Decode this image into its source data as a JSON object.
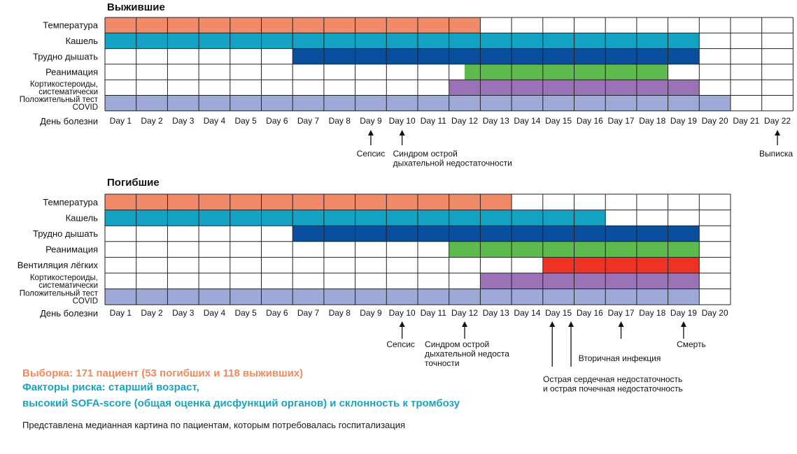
{
  "colors": {
    "fever": "#f08a68",
    "cough": "#13a2c3",
    "dyspnea": "#0a4f9e",
    "icu": "#5dbb4d",
    "ventilation": "#ee3325",
    "steroids": "#9a72b6",
    "covid": "#9da9d6",
    "grid": "#222222"
  },
  "day_axis_label": "День болезни",
  "chart_data": [
    {
      "type": "timeline",
      "title": "Выжившие",
      "xlabel": "День болезни",
      "days": [
        "Day 1",
        "Day 2",
        "Day 3",
        "Day 4",
        "Day 5",
        "Day 6",
        "Day 7",
        "Day 8",
        "Day 9",
        "Day 10",
        "Day 11",
        "Day 12",
        "Day 13",
        "Day 14",
        "Day 15",
        "Day 16",
        "Day 17",
        "Day 18",
        "Day 19",
        "Day 20",
        "Day 21",
        "Day 22"
      ],
      "rows": [
        {
          "label": "Температура",
          "start_day": 1,
          "end_day": 12,
          "color_key": "fever"
        },
        {
          "label": "Кашель",
          "start_day": 1,
          "end_day": 19,
          "color_key": "cough"
        },
        {
          "label": "Трудно дышать",
          "start_day": 7,
          "end_day": 19,
          "color_key": "dyspnea"
        },
        {
          "label": "Реанимация",
          "start_day": 12.5,
          "end_day": 18,
          "color_key": "icu"
        },
        {
          "label": "Кортикостероиды, систематически",
          "start_day": 12,
          "end_day": 19,
          "color_key": "steroids"
        },
        {
          "label": "Положительный тест COVID",
          "start_day": 1,
          "end_day": 20,
          "color_key": "covid"
        }
      ],
      "events": [
        {
          "day": 9,
          "text": [
            "Сепсис"
          ]
        },
        {
          "day": 10,
          "text": [
            "Синдром острой",
            "дыхательной недостаточности"
          ]
        },
        {
          "day": 22,
          "text": [
            "Выписка"
          ]
        }
      ]
    },
    {
      "type": "timeline",
      "title": "Погибшие",
      "xlabel": "День болезни",
      "days": [
        "Day 1",
        "Day 2",
        "Day 3",
        "Day 4",
        "Day 5",
        "Day 6",
        "Day 7",
        "Day 8",
        "Day 9",
        "Day 10",
        "Day 11",
        "Day 12",
        "Day 13",
        "Day 14",
        "Day 15",
        "Day 16",
        "Day 17",
        "Day 18",
        "Day 19",
        "Day 20"
      ],
      "rows": [
        {
          "label": "Температура",
          "start_day": 1,
          "end_day": 13,
          "color_key": "fever"
        },
        {
          "label": "Кашель",
          "start_day": 1,
          "end_day": 16,
          "color_key": "cough"
        },
        {
          "label": "Трудно дышать",
          "start_day": 7,
          "end_day": 19,
          "color_key": "dyspnea"
        },
        {
          "label": "Реанимация",
          "start_day": 12,
          "end_day": 19,
          "color_key": "icu"
        },
        {
          "label": "Вентиляция лёгких",
          "start_day": 15,
          "end_day": 19,
          "color_key": "ventilation"
        },
        {
          "label": "Кортикостероиды, систематически",
          "start_day": 13,
          "end_day": 19,
          "color_key": "steroids"
        },
        {
          "label": "Положительный тест COVID",
          "start_day": 1,
          "end_day": 19,
          "color_key": "covid"
        }
      ],
      "events": [
        {
          "day": 10,
          "text": [
            "Сепсис"
          ]
        },
        {
          "day": 12,
          "text": [
            "Синдром острой",
            "дыхательной недоста",
            "точности"
          ]
        },
        {
          "day": 14.8,
          "text": []
        },
        {
          "day": 15.4,
          "text": [
            "Острая сердечная недостаточность",
            "и острая почечная недостаточность"
          ]
        },
        {
          "day": 17,
          "text": [
            "Вторичная инфекция"
          ]
        },
        {
          "day": 19,
          "text": [
            "Смерть"
          ]
        }
      ]
    }
  ],
  "notes": {
    "sample": "Выборка: 171 пациент (53 погибших и 118 выживших)",
    "risk_line1": "Факторы риска: старший возраст,",
    "risk_line2": "высокий SOFA-score (общая оценка дисфункций органов) и склонность к тромбозу",
    "footnote": "Представлена медианная картина по пациентам, которым потребовалась госпитализация"
  }
}
